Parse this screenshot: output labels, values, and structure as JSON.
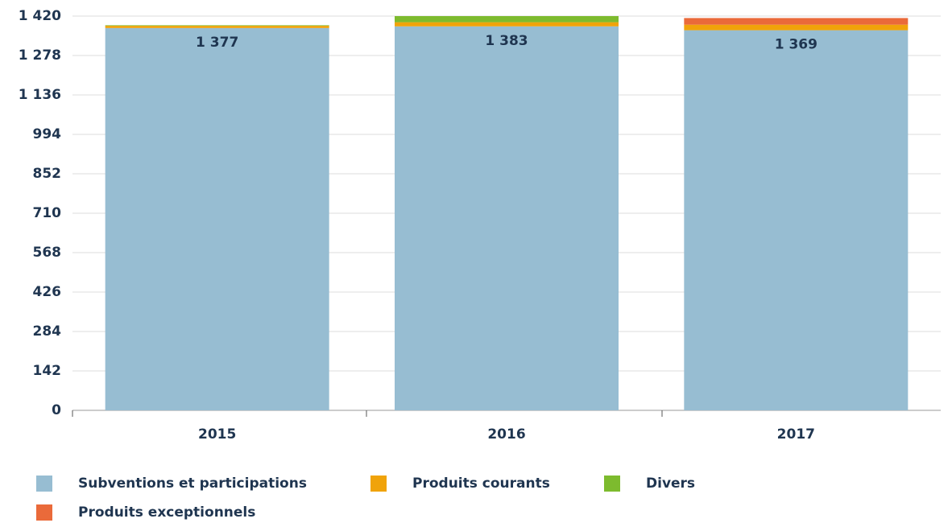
{
  "chart_data": {
    "type": "stacked_bar",
    "categories": [
      "2015",
      "2016",
      "2017"
    ],
    "series": [
      {
        "name": "Subventions et participations",
        "color": "#97bdd2",
        "values": [
          1377,
          1383,
          1369
        ],
        "value_labels": [
          "1 377",
          "1 383",
          "1 369"
        ]
      },
      {
        "name": "Produits courants",
        "color": "#f0a30a",
        "values": [
          8,
          15,
          20
        ]
      },
      {
        "name": "Divers",
        "color": "#7dbb2e",
        "values": [
          2,
          22,
          0
        ]
      },
      {
        "name": "Produits exceptionnels",
        "color": "#ea6a3a",
        "values": [
          0,
          0,
          24
        ]
      }
    ],
    "ylim": [
      0,
      1420
    ],
    "yticks": [
      0,
      142,
      284,
      426,
      568,
      710,
      852,
      994,
      {
        "value": 1136,
        "label": "1 136"
      },
      {
        "value": 1278,
        "label": "1 278"
      },
      {
        "value": 1420,
        "label": "1 420"
      }
    ],
    "grid": true,
    "legend": "bottom"
  }
}
